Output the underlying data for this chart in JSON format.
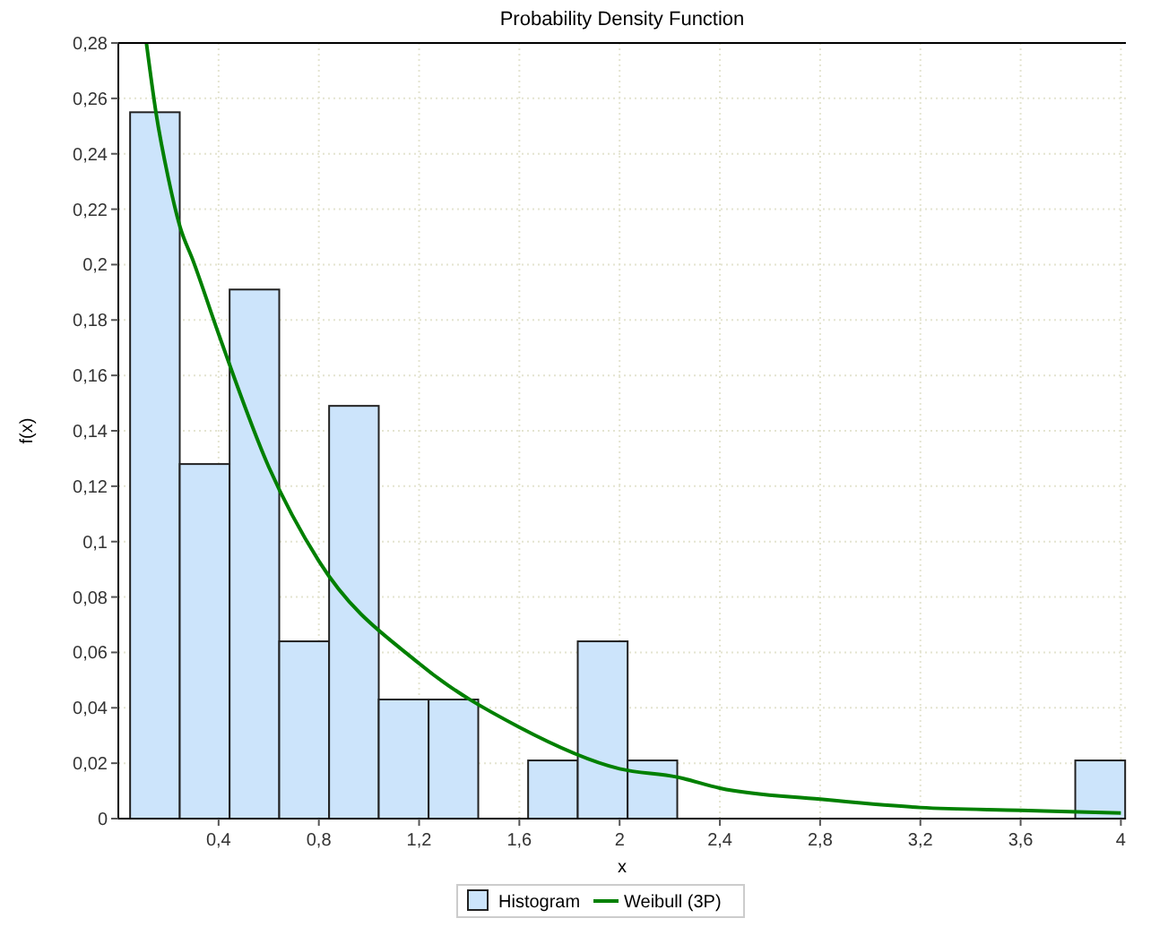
{
  "chart_data": {
    "type": "histogram",
    "title": "Probability Density Function",
    "xlabel": "x",
    "ylabel": "f(x)",
    "bins": [
      0.047,
      0.245,
      0.444,
      0.642,
      0.841,
      1.039,
      1.238,
      1.436,
      1.635,
      1.833,
      2.032,
      2.23,
      2.429,
      2.627,
      2.826,
      3.024,
      3.223,
      3.421,
      3.62,
      3.818,
      4.017
    ],
    "series": [
      {
        "name": "Histogram",
        "color": "#cce4fb",
        "values": [
          0.255,
          0.128,
          0.191,
          0.064,
          0.149,
          0.043,
          0.043,
          0,
          0.021,
          0.064,
          0.021,
          0,
          0,
          0,
          0,
          0,
          0,
          0,
          0,
          0.021
        ]
      },
      {
        "name": "Weibull (3P)",
        "type": "line",
        "color": "#008000",
        "x": [
          0.112,
          0.15,
          0.2,
          0.245,
          0.3,
          0.4,
          0.6,
          0.8,
          1.2,
          1.6,
          2,
          2.23,
          2.4,
          2.8,
          3.2,
          3.6,
          4.0
        ],
        "values": [
          0.28,
          0.255,
          0.231,
          0.214,
          0.201,
          0.175,
          0.127,
          0.093,
          0.056,
          0.033,
          0.018,
          0.015,
          0.011,
          0.007,
          0.004,
          0.003,
          0.002
        ]
      }
    ],
    "xlim": [
      0,
      4.02
    ],
    "xticks": [
      {
        "value": 0.4,
        "label": "0,4"
      },
      {
        "value": 0.8,
        "label": "0,8"
      },
      {
        "value": 1.2,
        "label": "1,2"
      },
      {
        "value": 1.6,
        "label": "1,6"
      },
      {
        "value": 2,
        "label": "2"
      },
      {
        "value": 2.4,
        "label": "2,4"
      },
      {
        "value": 2.8,
        "label": "2,8"
      },
      {
        "value": 3.2,
        "label": "3,2"
      },
      {
        "value": 3.6,
        "label": "3,6"
      },
      {
        "value": 4,
        "label": "4"
      }
    ],
    "ylim": [
      0,
      0.28
    ],
    "yticks": [
      0,
      {
        "value": 0.02,
        "label": "0,02"
      },
      {
        "value": 0.04,
        "label": "0,04"
      },
      {
        "value": 0.06,
        "label": "0,06"
      },
      {
        "value": 0.08,
        "label": "0,08"
      },
      {
        "value": 0.1,
        "label": "0,1"
      },
      {
        "value": 0.12,
        "label": "0,12"
      },
      {
        "value": 0.14,
        "label": "0,14"
      },
      {
        "value": 0.16,
        "label": "0,16"
      },
      {
        "value": 0.18,
        "label": "0,18"
      },
      {
        "value": 0.2,
        "label": "0,2"
      },
      {
        "value": 0.22,
        "label": "0,22"
      },
      {
        "value": 0.24,
        "label": "0,24"
      },
      {
        "value": 0.26,
        "label": "0,26"
      },
      {
        "value": 0.28,
        "label": "0,28"
      }
    ],
    "grid": true,
    "legend": "bottom"
  }
}
